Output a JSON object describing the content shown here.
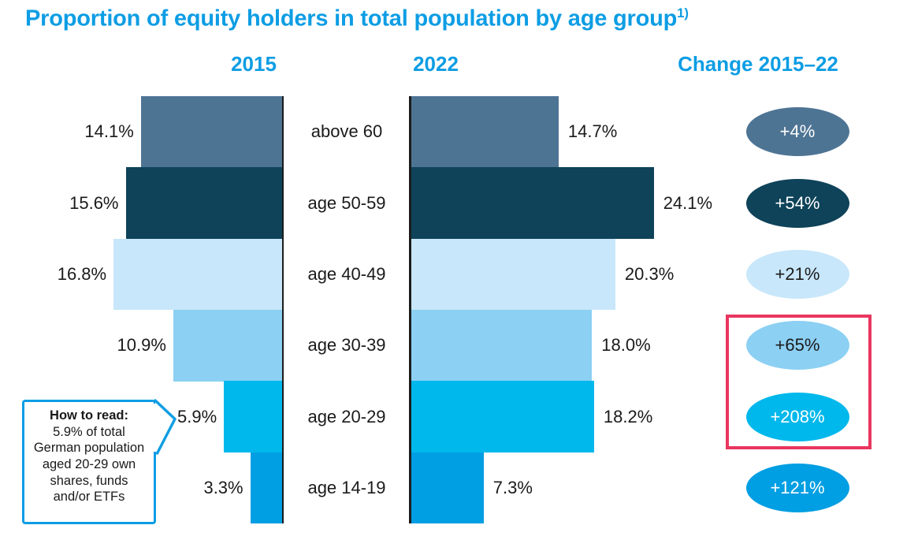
{
  "title": {
    "text": "Proportion of equity holders in total population by age group",
    "footnote_marker": "1)"
  },
  "headers": {
    "col_2015": "2015",
    "col_2022": "2022",
    "col_change": "Change 2015–22"
  },
  "callout": {
    "heading": "How to read:",
    "body": "5.9% of total German population aged 20-29 own shares, funds and/or ETFs"
  },
  "colors": {
    "accent_blue": "#0d9de4",
    "highlight_pink": "#e9365f",
    "axis": "#1c1c1c",
    "text": "#1a1a1a",
    "background": "#ffffff"
  },
  "chart_data": {
    "type": "bar",
    "subtype": "back_to_back_horizontal_pyramid",
    "title": "Proportion of equity holders in total population by age group",
    "footnote_marker": "1)",
    "unit": "%",
    "value_axis_hidden": true,
    "categories": [
      "above 60",
      "age 50-59",
      "age 40-49",
      "age 30-39",
      "age 20-29",
      "age 14-19"
    ],
    "series": [
      {
        "name": "2015",
        "values": [
          14.1,
          15.6,
          16.8,
          10.9,
          5.9,
          3.3
        ],
        "labels": [
          "14.1%",
          "15.6%",
          "16.8%",
          "10.9%",
          "5.9%",
          "3.3%"
        ]
      },
      {
        "name": "2022",
        "values": [
          14.7,
          24.1,
          20.3,
          18.0,
          18.2,
          7.3
        ],
        "labels": [
          "14.7%",
          "24.1%",
          "20.3%",
          "18.0%",
          "18.2%",
          "7.3%"
        ]
      }
    ],
    "change_column": {
      "header": "Change 2015–22",
      "labels": [
        "+4%",
        "+54%",
        "+21%",
        "+65%",
        "+208%",
        "+121%"
      ]
    },
    "row_colors": [
      "#4e7494",
      "#0e4359",
      "#c8e7fa",
      "#8cd0f3",
      "#00b8ec",
      "#009ee2"
    ],
    "change_text_colors": [
      "#ffffff",
      "#ffffff",
      "#1a1a1a",
      "#1a1a1a",
      "#ffffff",
      "#ffffff"
    ],
    "highlighted_rows": [
      "age 30-39",
      "age 20-29"
    ],
    "highlight_color": "#e9365f"
  }
}
